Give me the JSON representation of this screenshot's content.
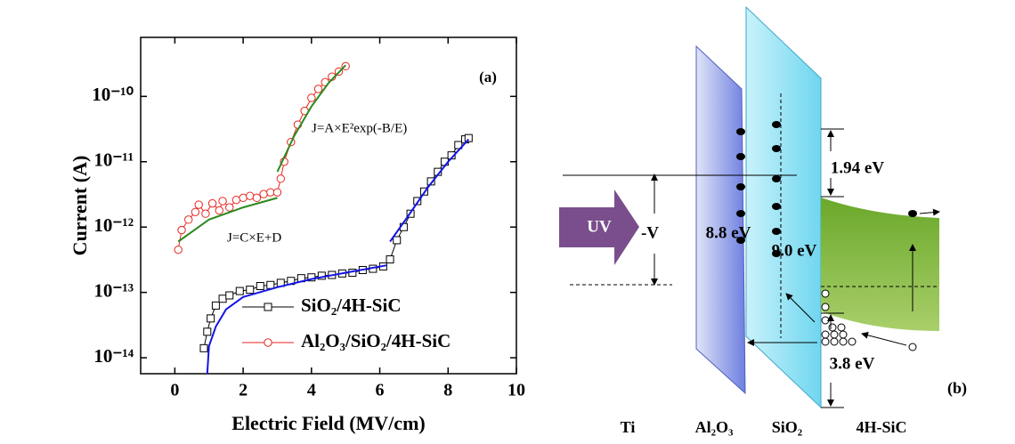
{
  "chart_data": {
    "type": "scatter",
    "x_label": "Electric Field (MV/cm)",
    "y_label": "Current (A)",
    "annotations": [
      "(a)",
      "J=A×E²exp(-B/E)",
      "J=C×E+D"
    ],
    "xlim": [
      -1,
      10
    ],
    "xticks": [
      0,
      2,
      4,
      6,
      8,
      10
    ],
    "ylim": [
      5.7e-15,
      8e-10
    ],
    "log_y": true,
    "yticks": [
      {
        "value": 1e-14,
        "label": "10⁻¹⁴"
      },
      {
        "value": 1e-13,
        "label": "10⁻¹³"
      },
      {
        "value": 1e-12,
        "label": "10⁻¹²"
      },
      {
        "value": 1e-11,
        "label": "10⁻¹¹"
      },
      {
        "value": 1e-10,
        "label": "10⁻¹⁰"
      }
    ],
    "legend": "lower right",
    "series": [
      {
        "name": "SiO₂/4H-SiC",
        "color": "#000000",
        "marker": "square",
        "x": [
          0.85,
          0.95,
          1.05,
          1.2,
          1.4,
          1.6,
          1.9,
          2.2,
          2.5,
          2.8,
          3.1,
          3.4,
          3.7,
          4.0,
          4.3,
          4.6,
          4.9,
          5.2,
          5.5,
          5.8,
          6.1,
          6.3,
          6.5,
          6.7,
          6.9,
          7.1,
          7.3,
          7.5,
          7.7,
          7.9,
          8.1,
          8.3,
          8.5,
          8.6
        ],
        "values": [
          1.4e-14,
          2.5e-14,
          4e-14,
          6.3e-14,
          8e-14,
          9e-14,
          1.05e-13,
          1.1e-13,
          1.25e-13,
          1.3e-13,
          1.4e-13,
          1.5e-13,
          1.65e-13,
          1.7e-13,
          1.8e-13,
          1.85e-13,
          1.95e-13,
          2e-13,
          2.2e-13,
          2.3e-13,
          2.5e-13,
          3.2e-13,
          6.3e-13,
          1e-12,
          1.6e-12,
          2.5e-12,
          3.5e-12,
          5e-12,
          7e-12,
          1e-11,
          1.25e-11,
          1.8e-11,
          2.2e-11,
          2.3e-11
        ]
      },
      {
        "name": "Al₂O₃/SiO₂/4H-SiC",
        "color": "#e8261f",
        "marker": "circle",
        "x": [
          0.1,
          0.2,
          0.4,
          0.6,
          0.7,
          0.9,
          1.1,
          1.3,
          1.4,
          1.6,
          1.8,
          2.0,
          2.2,
          2.4,
          2.6,
          2.8,
          3.0,
          3.1,
          3.2,
          3.4,
          3.6,
          3.8,
          4.0,
          4.2,
          4.4,
          4.6,
          4.8,
          5.0
        ],
        "values": [
          4.5e-13,
          9e-13,
          1.3e-12,
          1.7e-12,
          2.2e-12,
          1.6e-12,
          2.3e-12,
          1.8e-12,
          2.5e-12,
          2e-12,
          2.6e-12,
          2.8e-12,
          3e-12,
          2.8e-12,
          3.2e-12,
          3.4e-12,
          3.4e-12,
          5.5e-12,
          1e-11,
          2e-11,
          3.7e-11,
          6e-11,
          9.5e-11,
          1.3e-10,
          1.65e-10,
          2e-10,
          2.4e-10,
          2.9e-10
        ]
      },
      {
        "color": "#1414e6",
        "marker": "none",
        "x": [
          0.95,
          1.0,
          1.2,
          1.5,
          2.0,
          3.0,
          4.0,
          5.0,
          6.2
        ],
        "values": [
          5.7e-15,
          1.5e-14,
          3e-14,
          5.5e-14,
          8.5e-14,
          1.2e-13,
          1.6e-13,
          2e-13,
          2.6e-13
        ]
      },
      {
        "color": "#1414e6",
        "marker": "none",
        "x": [
          6.3,
          6.8,
          7.4,
          8.0,
          8.6
        ],
        "values": [
          6e-13,
          1.4e-12,
          4e-12,
          1e-11,
          2.2e-11
        ]
      },
      {
        "color": "#2b8a1e",
        "marker": "none",
        "x": [
          0.1,
          1.0,
          2.0,
          3.0
        ],
        "values": [
          6e-13,
          1.3e-12,
          2e-12,
          2.8e-12
        ]
      },
      {
        "color": "#2b8a1e",
        "marker": "none",
        "x": [
          3.0,
          3.5,
          4.0,
          4.5,
          5.0
        ],
        "values": [
          7e-12,
          2.5e-11,
          7e-11,
          1.6e-10,
          3e-10
        ]
      }
    ]
  },
  "diagram": {
    "uv": "UV",
    "bias": "-V",
    "al2o3_gap": "8.8 eV",
    "sio2_gap": "9.0 eV",
    "cb_offset": "1.94 eV",
    "vb_offset": "3.8 eV",
    "panel": "(b)",
    "layers": [
      "Ti",
      "Al₂O₃",
      "SiO₂",
      "4H-SiC"
    ]
  }
}
